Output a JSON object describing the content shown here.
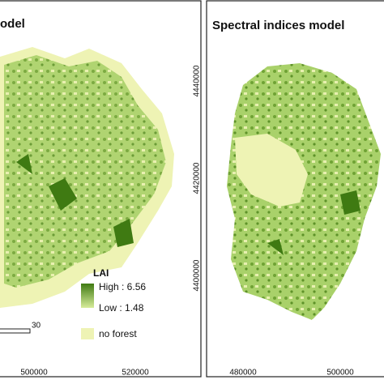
{
  "panels": [
    {
      "title": "odel",
      "x_ticks": [
        "500000",
        "520000"
      ]
    },
    {
      "title": "Spectral indices model",
      "x_ticks": [
        "480000",
        "500000"
      ],
      "y_ticks": [
        "4440000",
        "4420000",
        "4400000"
      ]
    }
  ],
  "legend": {
    "title": "LAI",
    "high": "High : 6.56",
    "low": "Low : 1.48",
    "no_forest": "no forest"
  },
  "scale_bar": {
    "label": "30"
  }
}
